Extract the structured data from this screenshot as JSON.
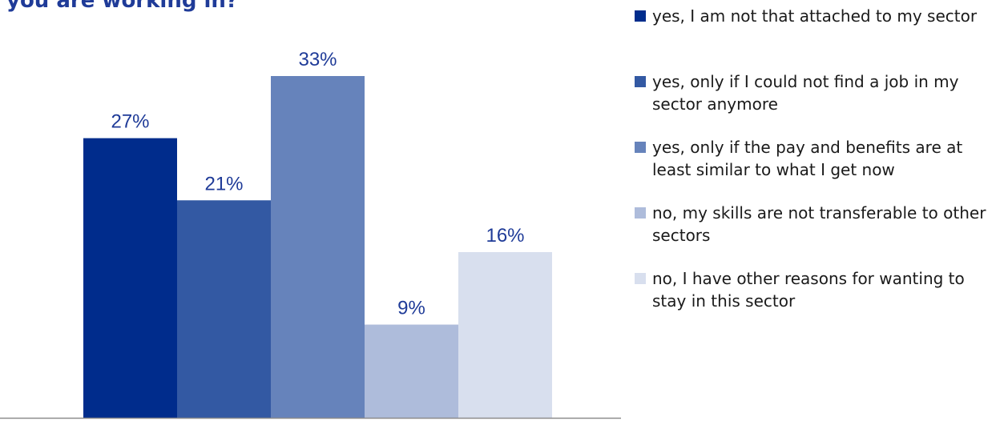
{
  "header": {
    "title": "you are working in?"
  },
  "chart_data": {
    "type": "bar",
    "categories": [
      "yes, I am not that attached to my sector",
      "yes, only if I could not find a job in my sector anymore",
      "yes, only if the pay and benefits are at least similar to what I get now",
      "no, my skills are not transferable to other sectors",
      "no, I have other reasons for wanting to stay in this sector"
    ],
    "values": [
      27,
      21,
      33,
      9,
      16
    ],
    "data_labels": [
      "27%",
      "21%",
      "33%",
      "9%",
      "16%"
    ],
    "colors": [
      "#002c8c",
      "#3359a3",
      "#6683bb",
      "#aebcdb",
      "#d8dfee"
    ],
    "label_color": "#1f3b98",
    "axis_color": "#8c8c8c",
    "ylim": [
      0,
      33
    ],
    "grid": false,
    "legend_position": "right"
  }
}
